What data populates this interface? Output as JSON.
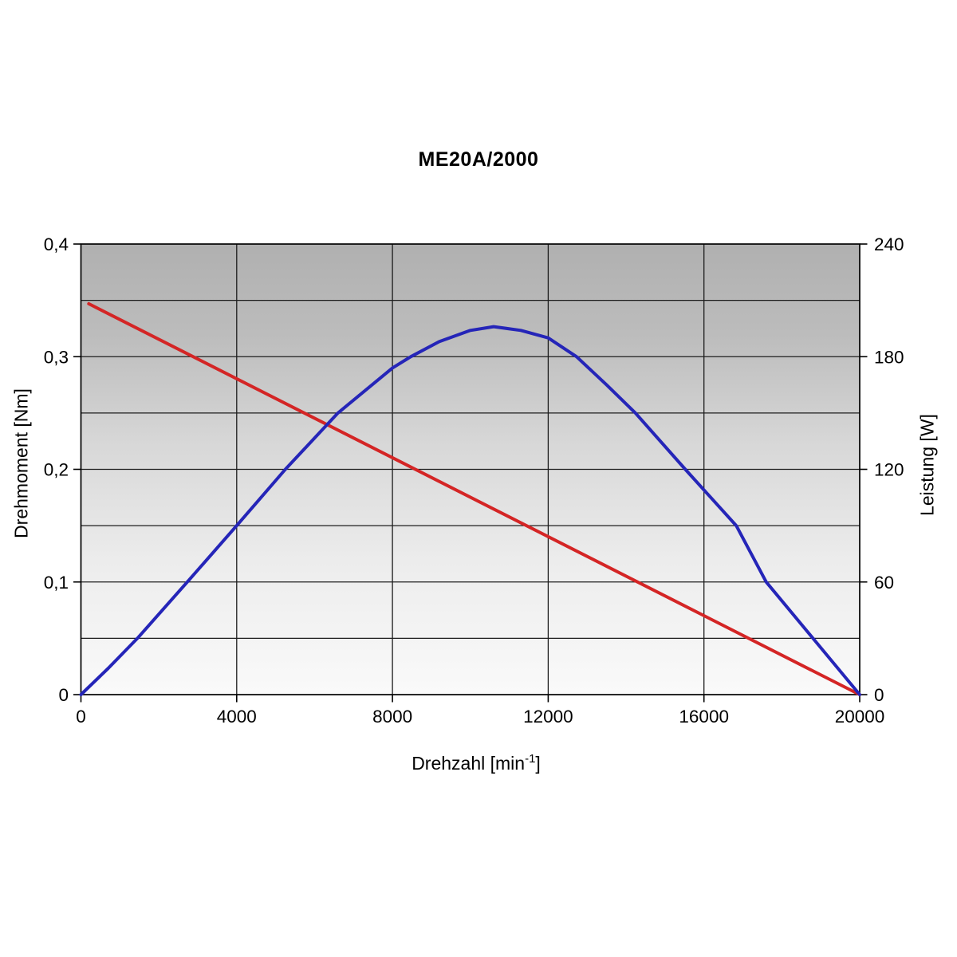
{
  "title": "ME20A/2000",
  "xlabel_parts": {
    "prefix": "Drehzahl [min",
    "sup": "-1",
    "suffix": "]"
  },
  "chart_data": {
    "type": "line",
    "title": "ME20A/2000",
    "xlabel": "Drehzahl [min⁻¹]",
    "ylabel_left": "Drehmoment [Nm]",
    "ylabel_right": "Leistung [W]",
    "xlim": [
      0,
      20000
    ],
    "ylim_left": [
      0,
      0.4
    ],
    "ylim_right": [
      0,
      240
    ],
    "x_ticks": [
      0,
      4000,
      8000,
      12000,
      16000,
      20000
    ],
    "x_tick_labels": [
      "0",
      "4000",
      "8000",
      "12000",
      "16000",
      "20000"
    ],
    "y_left_ticks": [
      0,
      0.1,
      0.2,
      0.3,
      0.4
    ],
    "y_left_tick_labels": [
      "0",
      "0,1",
      "0,2",
      "0,3",
      "0,4"
    ],
    "y_right_ticks": [
      0,
      60,
      120,
      180,
      240
    ],
    "y_right_tick_labels": [
      "0",
      "60",
      "120",
      "180",
      "240"
    ],
    "grid": {
      "horizontal_step_left_axis": 0.05,
      "vertical_step": 4000,
      "visible": true
    },
    "legend": "none",
    "plot_background": {
      "gradient_top": "#b0b0b0",
      "gradient_bottom": "#fafafa"
    },
    "series": [
      {
        "name": "Drehmoment",
        "axis": "left",
        "unit": "Nm",
        "color": "#d42525",
        "points": [
          [
            200,
            0.347
          ],
          [
            20000,
            0
          ]
        ]
      },
      {
        "name": "Leistung",
        "axis": "right",
        "unit": "W",
        "color": "#2525b8",
        "points": [
          [
            0,
            0
          ],
          [
            700,
            14
          ],
          [
            1450,
            30
          ],
          [
            2730,
            60
          ],
          [
            4000,
            90
          ],
          [
            5250,
            120
          ],
          [
            6600,
            150
          ],
          [
            8000,
            174
          ],
          [
            8470,
            180
          ],
          [
            9200,
            188
          ],
          [
            10000,
            194
          ],
          [
            10600,
            196
          ],
          [
            11300,
            194
          ],
          [
            12000,
            190
          ],
          [
            12730,
            180
          ],
          [
            13500,
            165
          ],
          [
            14240,
            150
          ],
          [
            15520,
            120
          ],
          [
            16830,
            90
          ],
          [
            17600,
            60
          ],
          [
            18800,
            30
          ],
          [
            20000,
            0
          ]
        ]
      }
    ]
  }
}
